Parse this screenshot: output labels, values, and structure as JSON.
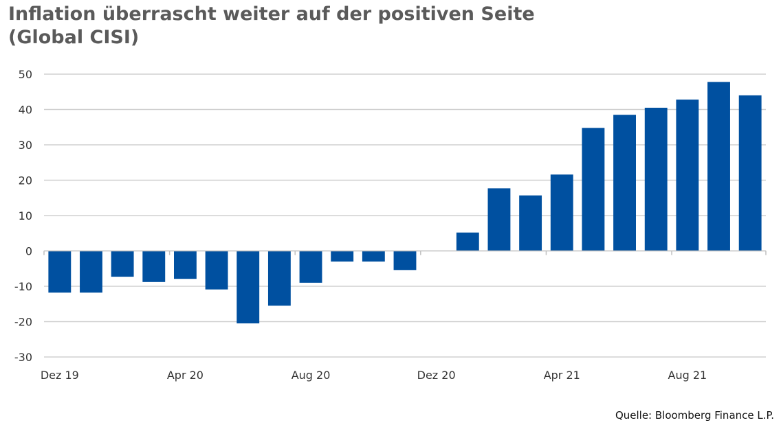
{
  "title": {
    "line1": "Inflation überrascht weiter auf der positiven Seite",
    "line2": "(Global CISI)"
  },
  "source": "Quelle: Bloomberg Finance L.P.",
  "colors": {
    "bar": "#0050a0",
    "grid": "#d0d0d0",
    "axis": "#bfbfbf",
    "text": "#333333"
  },
  "chart_data": {
    "type": "bar",
    "title": "Inflation überrascht weiter auf der positiven Seite (Global CISI)",
    "xlabel": "",
    "ylabel": "",
    "ylim": [
      -30,
      50
    ],
    "yticks": [
      50,
      40,
      30,
      20,
      10,
      0,
      -10,
      -20,
      -30
    ],
    "x_tick_labels": [
      {
        "index": 0,
        "label": "Dez 19"
      },
      {
        "index": 4,
        "label": "Apr 20"
      },
      {
        "index": 8,
        "label": "Aug 20"
      },
      {
        "index": 12,
        "label": "Dez 20"
      },
      {
        "index": 16,
        "label": "Apr 21"
      },
      {
        "index": 20,
        "label": "Aug 21"
      }
    ],
    "categories": [
      "Dez 19",
      "Jan 20",
      "Feb 20",
      "Mär 20",
      "Apr 20",
      "Mai 20",
      "Jun 20",
      "Jul 20",
      "Aug 20",
      "Sep 20",
      "Okt 20",
      "Nov 20",
      "Dez 20",
      "Jan 21",
      "Feb 21",
      "Mär 21",
      "Apr 21",
      "Mai 21",
      "Jun 21",
      "Jul 21",
      "Aug 21",
      "Sep 21",
      "Okt 21"
    ],
    "values": [
      -11.8,
      -11.8,
      -7.3,
      -8.8,
      -7.9,
      -10.9,
      -20.5,
      -15.5,
      -9.0,
      -3.0,
      -3.0,
      -5.4,
      null,
      5.2,
      17.7,
      15.7,
      21.6,
      34.8,
      38.5,
      40.5,
      42.8,
      47.8,
      44.0
    ],
    "grid": true,
    "legend": "none"
  }
}
